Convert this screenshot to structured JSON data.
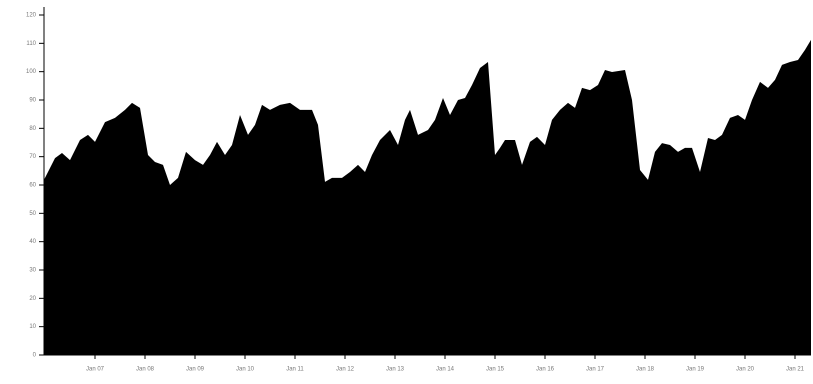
{
  "chart_data": {
    "type": "area",
    "color": "#000000",
    "x": [
      2005.98,
      2006.2,
      2006.34,
      2006.5,
      2006.7,
      2006.86,
      2007,
      2007.2,
      2007.4,
      2007.6,
      2007.74,
      2007.9,
      2008.06,
      2008.2,
      2008.36,
      2008.5,
      2008.66,
      2008.82,
      2009,
      2009.16,
      2009.3,
      2009.44,
      2009.6,
      2009.74,
      2009.9,
      2010.06,
      2010.2,
      2010.34,
      2010.5,
      2010.7,
      2010.9,
      2011.1,
      2011.34,
      2011.46,
      2011.6,
      2011.74,
      2011.94,
      2012.1,
      2012.26,
      2012.4,
      2012.54,
      2012.7,
      2012.9,
      2013.06,
      2013.2,
      2013.3,
      2013.46,
      2013.66,
      2013.8,
      2013.96,
      2014.1,
      2014.26,
      2014.4,
      2014.54,
      2014.7,
      2014.86,
      2015,
      2015.1,
      2015.2,
      2015.4,
      2015.54,
      2015.7,
      2015.84,
      2016,
      2016.14,
      2016.3,
      2016.46,
      2016.6,
      2016.74,
      2016.9,
      2017.06,
      2017.2,
      2017.34,
      2017.6,
      2017.74,
      2017.9,
      2018.06,
      2018.2,
      2018.34,
      2018.5,
      2018.66,
      2018.8,
      2018.94,
      2019.1,
      2019.26,
      2019.4,
      2019.54,
      2019.7,
      2019.86,
      2020,
      2020.14,
      2020.3,
      2020.46,
      2020.6,
      2020.74,
      2020.9,
      2021.06,
      2021.2,
      2021.32
    ],
    "values": [
      61.8,
      69.5,
      71.3,
      68.8,
      75.9,
      77.7,
      75.2,
      82.2,
      83.7,
      86.5,
      89.0,
      87.2,
      70.6,
      68.1,
      67.1,
      60.0,
      62.5,
      71.7,
      68.8,
      67.1,
      70.6,
      75.2,
      70.6,
      74.1,
      84.7,
      77.7,
      81.2,
      88.3,
      86.5,
      88.3,
      89.0,
      86.5,
      86.5,
      81.2,
      61.1,
      62.5,
      62.5,
      64.6,
      67.1,
      64.6,
      70.6,
      75.9,
      79.4,
      74.1,
      83.0,
      86.5,
      77.7,
      79.4,
      83.0,
      90.7,
      84.7,
      90.0,
      90.7,
      95.3,
      101.3,
      103.4,
      70.6,
      73.1,
      75.9,
      75.9,
      67.1,
      75.2,
      77.0,
      74.1,
      83.0,
      86.5,
      89.0,
      87.2,
      94.3,
      93.5,
      95.3,
      100.6,
      99.9,
      100.6,
      90.0,
      65.3,
      61.8,
      71.7,
      74.8,
      74.1,
      71.7,
      73.1,
      73.1,
      64.6,
      76.6,
      75.9,
      77.7,
      83.7,
      84.7,
      83.0,
      90.0,
      96.4,
      94.3,
      97.1,
      102.4,
      103.4,
      104.1,
      107.7,
      111.2
    ],
    "xlim": [
      2005.98,
      2021.32
    ],
    "ylim": [
      0,
      120
    ],
    "xticks": [
      {
        "value": 2007,
        "label": "Jan 07"
      },
      {
        "value": 2008,
        "label": "Jan 08"
      },
      {
        "value": 2009,
        "label": "Jan 09"
      },
      {
        "value": 2010,
        "label": "Jan 10"
      },
      {
        "value": 2011,
        "label": "Jan 11"
      },
      {
        "value": 2012,
        "label": "Jan 12"
      },
      {
        "value": 2013,
        "label": "Jan 13"
      },
      {
        "value": 2014,
        "label": "Jan 14"
      },
      {
        "value": 2015,
        "label": "Jan 15"
      },
      {
        "value": 2016,
        "label": "Jan 16"
      },
      {
        "value": 2017,
        "label": "Jan 17"
      },
      {
        "value": 2018,
        "label": "Jan 18"
      },
      {
        "value": 2019,
        "label": "Jan 19"
      },
      {
        "value": 2020,
        "label": "Jan 20"
      },
      {
        "value": 2021,
        "label": "Jan 21"
      }
    ],
    "yticks": [
      0,
      10,
      20,
      30,
      40,
      50,
      60,
      70,
      80,
      90,
      100,
      110,
      120
    ]
  }
}
